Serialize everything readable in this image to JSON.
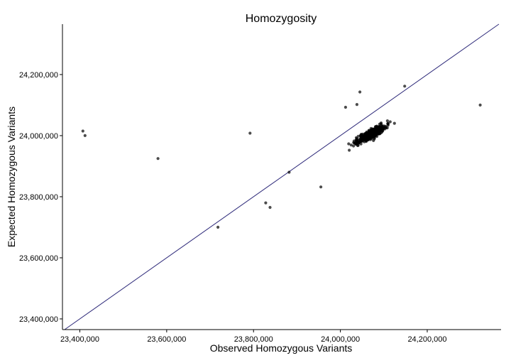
{
  "chart_data": {
    "type": "scatter",
    "title": "Homozygosity",
    "xlabel": "Observed Homozygous Variants",
    "ylabel": "Expected Homozygous Variants",
    "xlim": [
      23360000,
      24370000
    ],
    "ylim": [
      23365000,
      24365000
    ],
    "xticks": [
      23400000,
      23600000,
      23800000,
      24000000,
      24200000
    ],
    "xtick_labels": [
      "23,400,000",
      "23,600,000",
      "23,800,000",
      "24,000,000",
      "24,200,000"
    ],
    "yticks": [
      23400000,
      23600000,
      23800000,
      24000000,
      24200000
    ],
    "ytick_labels": [
      "23,400,000",
      "23,600,000",
      "23,800,000",
      "24,000,000",
      "24,200,000"
    ],
    "reference_line": {
      "slope": 1,
      "intercept": 0,
      "color": "#2e2a7a"
    },
    "point_color": "#000000",
    "point_opacity": 0.7,
    "grid": false,
    "outliers": [
      [
        23407000,
        24015000
      ],
      [
        23412000,
        24000000
      ],
      [
        23580000,
        23925000
      ],
      [
        23718000,
        23700000
      ],
      [
        23792000,
        24008000
      ],
      [
        23828000,
        23780000
      ],
      [
        23838000,
        23765000
      ],
      [
        24322000,
        24100000
      ],
      [
        24045000,
        24143000
      ],
      [
        24148000,
        24162000
      ],
      [
        24012000,
        24093000
      ],
      [
        24038000,
        24102000
      ],
      [
        23955000,
        23832000
      ],
      [
        23882000,
        23880000
      ]
    ],
    "cluster": {
      "count": 420,
      "center": [
        24070000,
        24005000
      ],
      "x_spread": [
        23900000,
        24190000
      ],
      "y_spread": [
        23830000,
        24120000
      ]
    }
  }
}
